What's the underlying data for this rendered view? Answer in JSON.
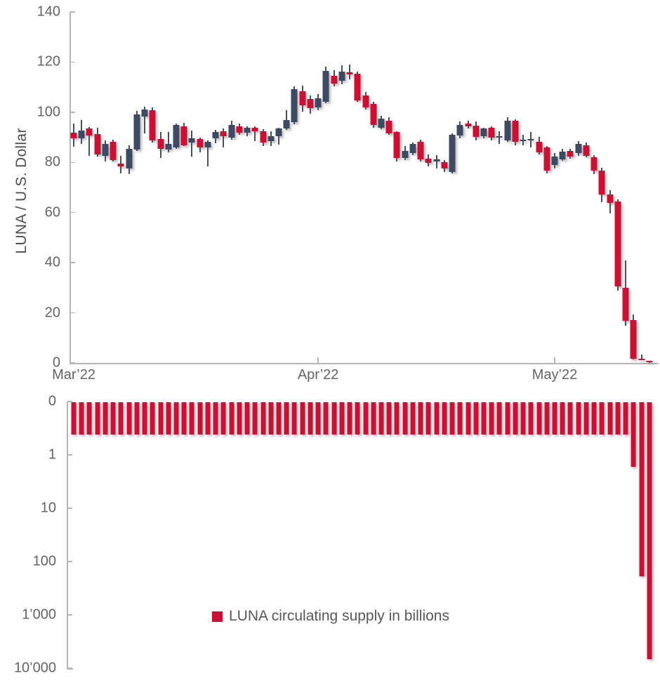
{
  "page": {
    "background": "#ffffff"
  },
  "axis": {
    "line_color": "#b4b5b6",
    "text_color": "#636466"
  },
  "chart_data": [
    {
      "type": "candlestick",
      "title": "",
      "ylabel": "LUNA / U.S. Dollar",
      "ylim": [
        0,
        140
      ],
      "yticks": [
        0,
        20,
        40,
        60,
        80,
        100,
        120,
        140
      ],
      "xticks": [
        {
          "label": "Mar’22",
          "index": 0
        },
        {
          "label": "Apr’22",
          "index": 31
        },
        {
          "label": "May’22",
          "index": 61
        }
      ],
      "grid": false,
      "legend_position": "none",
      "up_color": "#3c4a62",
      "down_color": "#cb1034",
      "wick_color": "#47505f",
      "ohlc_format": [
        "date",
        "open",
        "high",
        "low",
        "close"
      ],
      "ohlc": [
        [
          "2022-03-01",
          91.8,
          95.5,
          86.2,
          89.5
        ],
        [
          "2022-03-02",
          89.7,
          97.0,
          87.4,
          92.7
        ],
        [
          "2022-03-03",
          93.4,
          94.0,
          82.7,
          90.8
        ],
        [
          "2022-03-04",
          91.4,
          93.9,
          82.4,
          83.2
        ],
        [
          "2022-03-05",
          82.7,
          88.8,
          80.4,
          87.4
        ],
        [
          "2022-03-06",
          88.3,
          89.0,
          80.4,
          80.8
        ],
        [
          "2022-03-07",
          79.6,
          82.7,
          75.5,
          78.3
        ],
        [
          "2022-03-08",
          77.6,
          86.7,
          75.2,
          85.5
        ],
        [
          "2022-03-09",
          85.0,
          100.4,
          84.6,
          99.0
        ],
        [
          "2022-03-10",
          98.3,
          102.3,
          91.6,
          101.1
        ],
        [
          "2022-03-11",
          100.7,
          101.8,
          87.8,
          88.8
        ],
        [
          "2022-03-12",
          89.2,
          92.0,
          81.8,
          85.5
        ],
        [
          "2022-03-13",
          85.0,
          92.0,
          84.1,
          87.4
        ],
        [
          "2022-03-14",
          86.0,
          95.5,
          85.5,
          94.8
        ],
        [
          "2022-03-15",
          94.4,
          95.8,
          86.5,
          86.9
        ],
        [
          "2022-03-16",
          87.8,
          92.7,
          82.4,
          89.7
        ],
        [
          "2022-03-17",
          89.2,
          90.0,
          84.1,
          86.0
        ],
        [
          "2022-03-18",
          86.0,
          88.8,
          78.5,
          88.3
        ],
        [
          "2022-03-19",
          89.5,
          93.0,
          87.5,
          92.0
        ],
        [
          "2022-03-20",
          92.5,
          93.5,
          86.0,
          90.5
        ],
        [
          "2022-03-21",
          90.0,
          96.7,
          89.0,
          94.9
        ],
        [
          "2022-03-22",
          94.5,
          95.5,
          91.0,
          91.8
        ],
        [
          "2022-03-23",
          91.8,
          94.5,
          90.5,
          93.8
        ],
        [
          "2022-03-24",
          93.8,
          94.5,
          88.5,
          92.3
        ],
        [
          "2022-03-25",
          92.5,
          93.2,
          86.5,
          88.0
        ],
        [
          "2022-03-26",
          88.5,
          92.3,
          86.5,
          90.5
        ],
        [
          "2022-03-27",
          90.5,
          93.8,
          87.0,
          93.4
        ],
        [
          "2022-03-28",
          93.4,
          100.8,
          93.0,
          96.9
        ],
        [
          "2022-03-29",
          96.0,
          110.2,
          95.3,
          109.1
        ],
        [
          "2022-03-30",
          108.4,
          110.6,
          100.3,
          102.7
        ],
        [
          "2022-03-31",
          105.2,
          106.7,
          99.3,
          101.5
        ],
        [
          "2022-04-01",
          101.8,
          107.2,
          100.7,
          105.7
        ],
        [
          "2022-04-02",
          104.2,
          118.2,
          103.7,
          116.5
        ],
        [
          "2022-04-03",
          114.5,
          116.7,
          110.2,
          111.3
        ],
        [
          "2022-04-04",
          112.6,
          118.8,
          111.2,
          116.2
        ],
        [
          "2022-04-05",
          116.0,
          119.0,
          113.1,
          115.2
        ],
        [
          "2022-04-06",
          115.5,
          116.2,
          104.2,
          104.7
        ],
        [
          "2022-04-07",
          106.7,
          108.2,
          101.0,
          102.0
        ],
        [
          "2022-04-08",
          103.2,
          104.2,
          93.7,
          94.9
        ],
        [
          "2022-04-09",
          93.9,
          98.6,
          93.2,
          97.4
        ],
        [
          "2022-04-10",
          96.7,
          98.0,
          91.0,
          91.6
        ],
        [
          "2022-04-11",
          92.0,
          92.5,
          80.4,
          81.8
        ],
        [
          "2022-04-12",
          81.8,
          86.5,
          81.0,
          84.6
        ],
        [
          "2022-04-13",
          83.6,
          88.0,
          83.0,
          87.4
        ],
        [
          "2022-04-14",
          88.3,
          89.0,
          80.4,
          81.3
        ],
        [
          "2022-04-15",
          81.5,
          83.2,
          78.5,
          79.9
        ],
        [
          "2022-04-16",
          80.4,
          83.0,
          77.5,
          81.1
        ],
        [
          "2022-04-17",
          80.2,
          81.0,
          76.2,
          77.6
        ],
        [
          "2022-04-18",
          76.2,
          91.5,
          75.5,
          91.1
        ],
        [
          "2022-04-19",
          90.6,
          96.2,
          89.5,
          94.8
        ],
        [
          "2022-04-20",
          95.5,
          96.7,
          93.5,
          94.4
        ],
        [
          "2022-04-21",
          94.6,
          96.3,
          88.8,
          90.2
        ],
        [
          "2022-04-22",
          90.5,
          93.8,
          89.5,
          93.6
        ],
        [
          "2022-04-23",
          93.9,
          94.5,
          88.8,
          89.9
        ],
        [
          "2022-04-24",
          90.0,
          92.5,
          87.4,
          90.4
        ],
        [
          "2022-04-25",
          88.8,
          97.9,
          88.2,
          96.7
        ],
        [
          "2022-04-26",
          96.7,
          97.2,
          86.9,
          88.3
        ],
        [
          "2022-04-27",
          88.5,
          91.1,
          86.9,
          89.0
        ],
        [
          "2022-04-28",
          88.7,
          92.0,
          86.0,
          89.2
        ],
        [
          "2022-04-29",
          88.3,
          90.2,
          83.2,
          84.1
        ],
        [
          "2022-04-30",
          86.0,
          86.5,
          75.7,
          76.6
        ],
        [
          "2022-05-01",
          78.9,
          83.6,
          77.6,
          82.2
        ],
        [
          "2022-05-02",
          81.3,
          85.5,
          80.5,
          84.3
        ],
        [
          "2022-05-03",
          84.6,
          85.5,
          81.5,
          82.2
        ],
        [
          "2022-05-04",
          83.6,
          88.6,
          82.5,
          87.4
        ],
        [
          "2022-05-05",
          86.9,
          87.8,
          82.0,
          82.7
        ],
        [
          "2022-05-06",
          82.1,
          82.8,
          75.4,
          76.7
        ],
        [
          "2022-05-07",
          76.7,
          77.9,
          64.0,
          67.3
        ],
        [
          "2022-05-08",
          67.3,
          68.9,
          59.7,
          63.9
        ],
        [
          "2022-05-09",
          64.3,
          65.2,
          28.8,
          30.5
        ],
        [
          "2022-05-10",
          29.9,
          41.0,
          14.9,
          16.8
        ],
        [
          "2022-05-11",
          17.1,
          19.4,
          1.5,
          1.7
        ],
        [
          "2022-05-12",
          1.6,
          3.3,
          1.0,
          1.2
        ],
        [
          "2022-05-13",
          0.8,
          0.9,
          0.1,
          0.2
        ]
      ]
    },
    {
      "type": "bar",
      "legend": "LUNA circulating supply in billions",
      "legend_position": "center-bottom",
      "orientation": "hanging-from-top",
      "yscale": "log-inverted",
      "ylim": [
        0.1,
        10000
      ],
      "ytick_labels": [
        "0",
        "1",
        "10",
        "100",
        "1’000",
        "10’000"
      ],
      "bar_color": "#cb1034",
      "unit": "billions",
      "values": [
        0.4,
        0.4,
        0.4,
        0.4,
        0.4,
        0.4,
        0.4,
        0.4,
        0.4,
        0.4,
        0.4,
        0.4,
        0.4,
        0.4,
        0.4,
        0.4,
        0.4,
        0.4,
        0.4,
        0.4,
        0.4,
        0.4,
        0.4,
        0.4,
        0.4,
        0.4,
        0.4,
        0.4,
        0.4,
        0.4,
        0.4,
        0.4,
        0.4,
        0.4,
        0.4,
        0.4,
        0.4,
        0.4,
        0.4,
        0.4,
        0.4,
        0.4,
        0.4,
        0.4,
        0.4,
        0.4,
        0.4,
        0.4,
        0.4,
        0.4,
        0.4,
        0.4,
        0.4,
        0.4,
        0.4,
        0.4,
        0.4,
        0.4,
        0.4,
        0.4,
        0.4,
        0.4,
        0.4,
        0.4,
        0.4,
        0.4,
        0.4,
        0.4,
        0.4,
        0.4,
        0.4,
        1.6,
        185,
        6500
      ]
    }
  ]
}
